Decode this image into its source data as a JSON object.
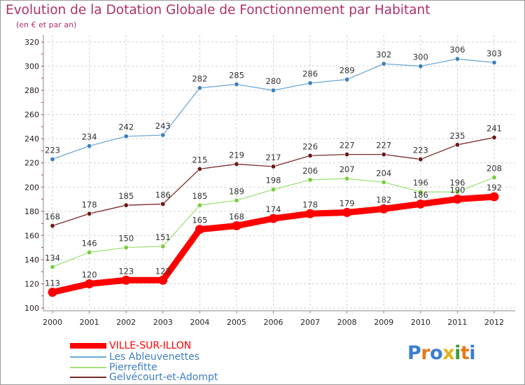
{
  "header": {
    "title": "Evolution de la Dotation Globale de Fonctionnement par Habitant",
    "subtitle": "(en € et par an)"
  },
  "logo": {
    "letters": [
      "P",
      "r",
      "o",
      "x",
      "i",
      "t",
      "i"
    ],
    "colors": [
      "#3a7fd0",
      "#e87a1e",
      "#3a7fd0",
      "#e2b21c",
      "#3a9a3a",
      "#e87a1e",
      "#3a7fd0"
    ]
  },
  "chart_data": {
    "type": "line",
    "title": "Evolution de la Dotation Globale de Fonctionnement par Habitant",
    "subtitle": "(en € et par an)",
    "xlabel": "",
    "ylabel": "",
    "x": [
      2000,
      2001,
      2002,
      2003,
      2004,
      2005,
      2006,
      2007,
      2008,
      2009,
      2010,
      2011,
      2012
    ],
    "x_labels": [
      "2000",
      "2001",
      "2002",
      "2003",
      "2004",
      "2005",
      "2006",
      "2007",
      "2008",
      "2009",
      "2010",
      "2011",
      "2012"
    ],
    "ylim": [
      100,
      320
    ],
    "yticks": [
      100,
      120,
      140,
      160,
      180,
      200,
      220,
      240,
      260,
      280,
      300,
      320
    ],
    "grid": true,
    "legend_position": "bottom-left",
    "series": [
      {
        "name": "VILLE-SUR-ILLON",
        "color": "#ff0000",
        "marker": "#ff0000",
        "thick": true,
        "values": [
          113,
          120,
          123,
          123,
          165,
          168,
          174,
          178,
          179,
          182,
          186,
          190,
          192
        ]
      },
      {
        "name": "Les Ableuvenettes",
        "color": "#6fa8d8",
        "marker": "#3e7fc0",
        "thick": false,
        "values": [
          223,
          234,
          242,
          243,
          282,
          285,
          280,
          286,
          289,
          302,
          300,
          306,
          303
        ]
      },
      {
        "name": "Pierrefitte",
        "color": "#a0e07a",
        "marker": "#7acc3c",
        "thick": false,
        "values": [
          134,
          146,
          150,
          151,
          185,
          189,
          198,
          206,
          207,
          204,
          196,
          196,
          208
        ]
      },
      {
        "name": "Gelvécourt-et-Adompt",
        "color": "#7a2a2a",
        "marker": "#6b1a1a",
        "thick": false,
        "values": [
          168,
          178,
          185,
          186,
          215,
          219,
          217,
          226,
          227,
          227,
          223,
          235,
          241
        ]
      }
    ]
  }
}
